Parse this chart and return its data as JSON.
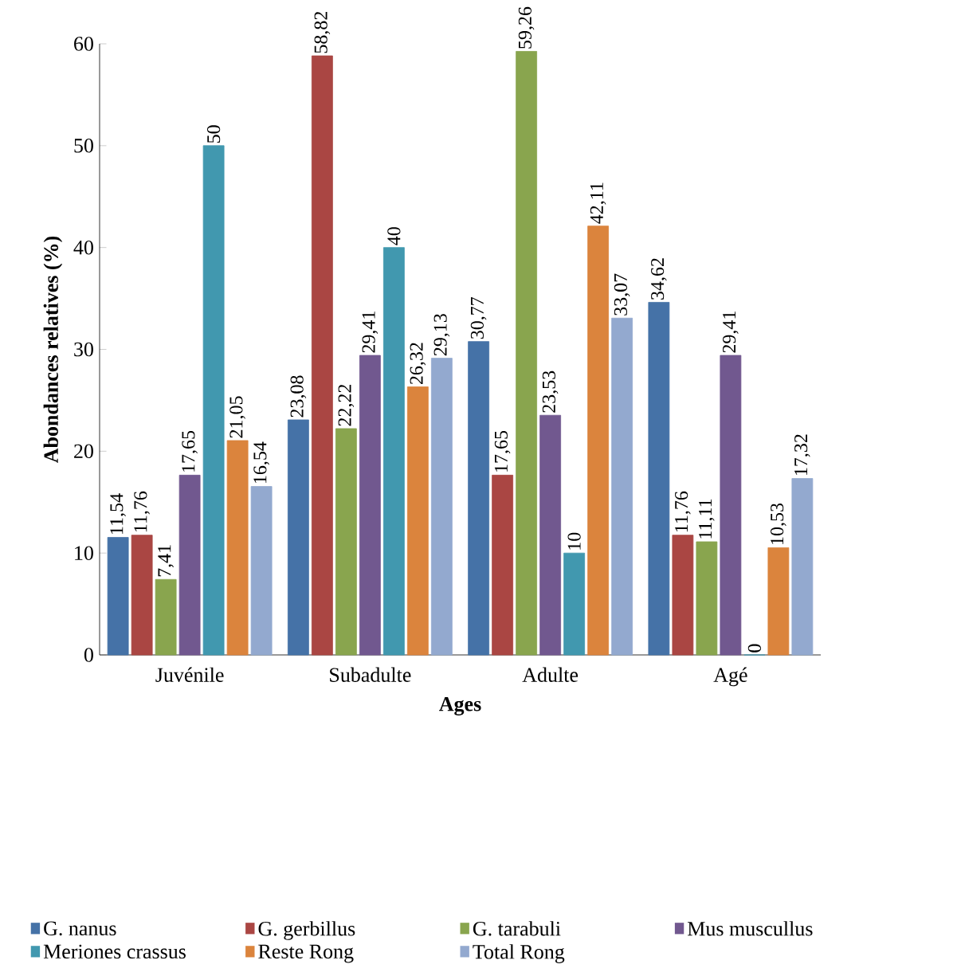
{
  "chart_data": {
    "type": "bar",
    "xlabel": "Ages",
    "ylabel": "Abondances relatives (%)",
    "categories": [
      "Juvénile",
      "Subadulte",
      "Adulte",
      "Agé"
    ],
    "ylim": [
      0,
      60
    ],
    "yticks": [
      0,
      10,
      20,
      30,
      40,
      50,
      60
    ],
    "grid": false,
    "legend": "bottom",
    "series": [
      {
        "name": "G. nanus",
        "color": "#4572a7",
        "values": [
          11.54,
          23.08,
          30.77,
          34.62
        ],
        "value_labels": [
          "11,54",
          "23,08",
          "30,77",
          "34,62"
        ]
      },
      {
        "name": "G. gerbillus",
        "color": "#aa4643",
        "values": [
          11.76,
          58.82,
          17.65,
          11.76
        ],
        "value_labels": [
          "11,76",
          "58,82",
          "17,65",
          "11,76"
        ]
      },
      {
        "name": "G. tarabuli",
        "color": "#89a54e",
        "values": [
          7.41,
          22.22,
          59.26,
          11.11
        ],
        "value_labels": [
          "7,41",
          "22,22",
          "59,26",
          "11,11"
        ]
      },
      {
        "name": "Mus muscullus",
        "color": "#71588f",
        "values": [
          17.65,
          29.41,
          23.53,
          29.41
        ],
        "value_labels": [
          "17,65",
          "29,41",
          "23,53",
          "29,41"
        ]
      },
      {
        "name": "Meriones crassus",
        "color": "#4198af",
        "values": [
          50,
          40,
          10,
          0
        ],
        "value_labels": [
          "50",
          "40",
          "10",
          "0"
        ]
      },
      {
        "name": "Reste Rong",
        "color": "#db843d",
        "values": [
          21.05,
          26.32,
          42.11,
          10.53
        ],
        "value_labels": [
          "21,05",
          "26,32",
          "42,11",
          "10,53"
        ]
      },
      {
        "name": "Total Rong",
        "color": "#93a9cf",
        "values": [
          16.54,
          29.13,
          33.07,
          17.32
        ],
        "value_labels": [
          "16,54",
          "29,13",
          "33,07",
          "17,32"
        ]
      }
    ]
  }
}
